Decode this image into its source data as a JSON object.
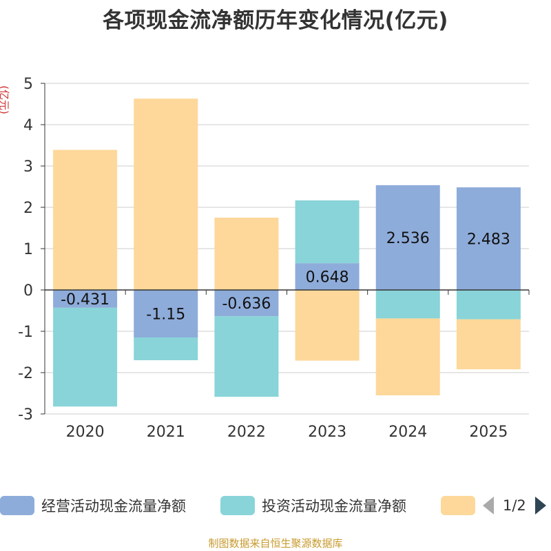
{
  "title": "各项现金流净额历年变化情况(亿元)",
  "source": "制图数据来自恒生聚源数据库",
  "legend": {
    "items": [
      {
        "label": "经营活动现金流量净额",
        "color": "#8eacda"
      },
      {
        "label": "投资活动现金流量净额",
        "color": "#89d4d8"
      },
      {
        "label": "",
        "color": "#fdd89a"
      }
    ],
    "pager": "1/2"
  },
  "chart_data": {
    "type": "bar",
    "stacked": true,
    "categories": [
      "2020",
      "2021",
      "2022",
      "2023",
      "2024",
      "2025"
    ],
    "ylabel": "(亿元)",
    "ylim": [
      -3,
      5
    ],
    "yticks": [
      5,
      4,
      3,
      2,
      1,
      0,
      -1,
      -2,
      -3
    ],
    "grid": true,
    "legend_position": "bottom",
    "series": [
      {
        "name": "经营活动现金流量净额",
        "color": "#8eacda",
        "values": [
          -0.431,
          -1.15,
          -0.636,
          0.648,
          2.536,
          2.483
        ],
        "labels": [
          "-0.431",
          "-1.15",
          "-0.636",
          "0.648",
          "2.536",
          "2.483"
        ]
      },
      {
        "name": "投资活动现金流量净额",
        "color": "#89d4d8",
        "values": [
          -2.39,
          -0.55,
          -1.95,
          1.52,
          -0.69,
          -0.71
        ]
      },
      {
        "color": "#fdd89a",
        "values": [
          3.39,
          4.63,
          1.75,
          -1.71,
          -1.86,
          -1.21
        ]
      }
    ]
  }
}
